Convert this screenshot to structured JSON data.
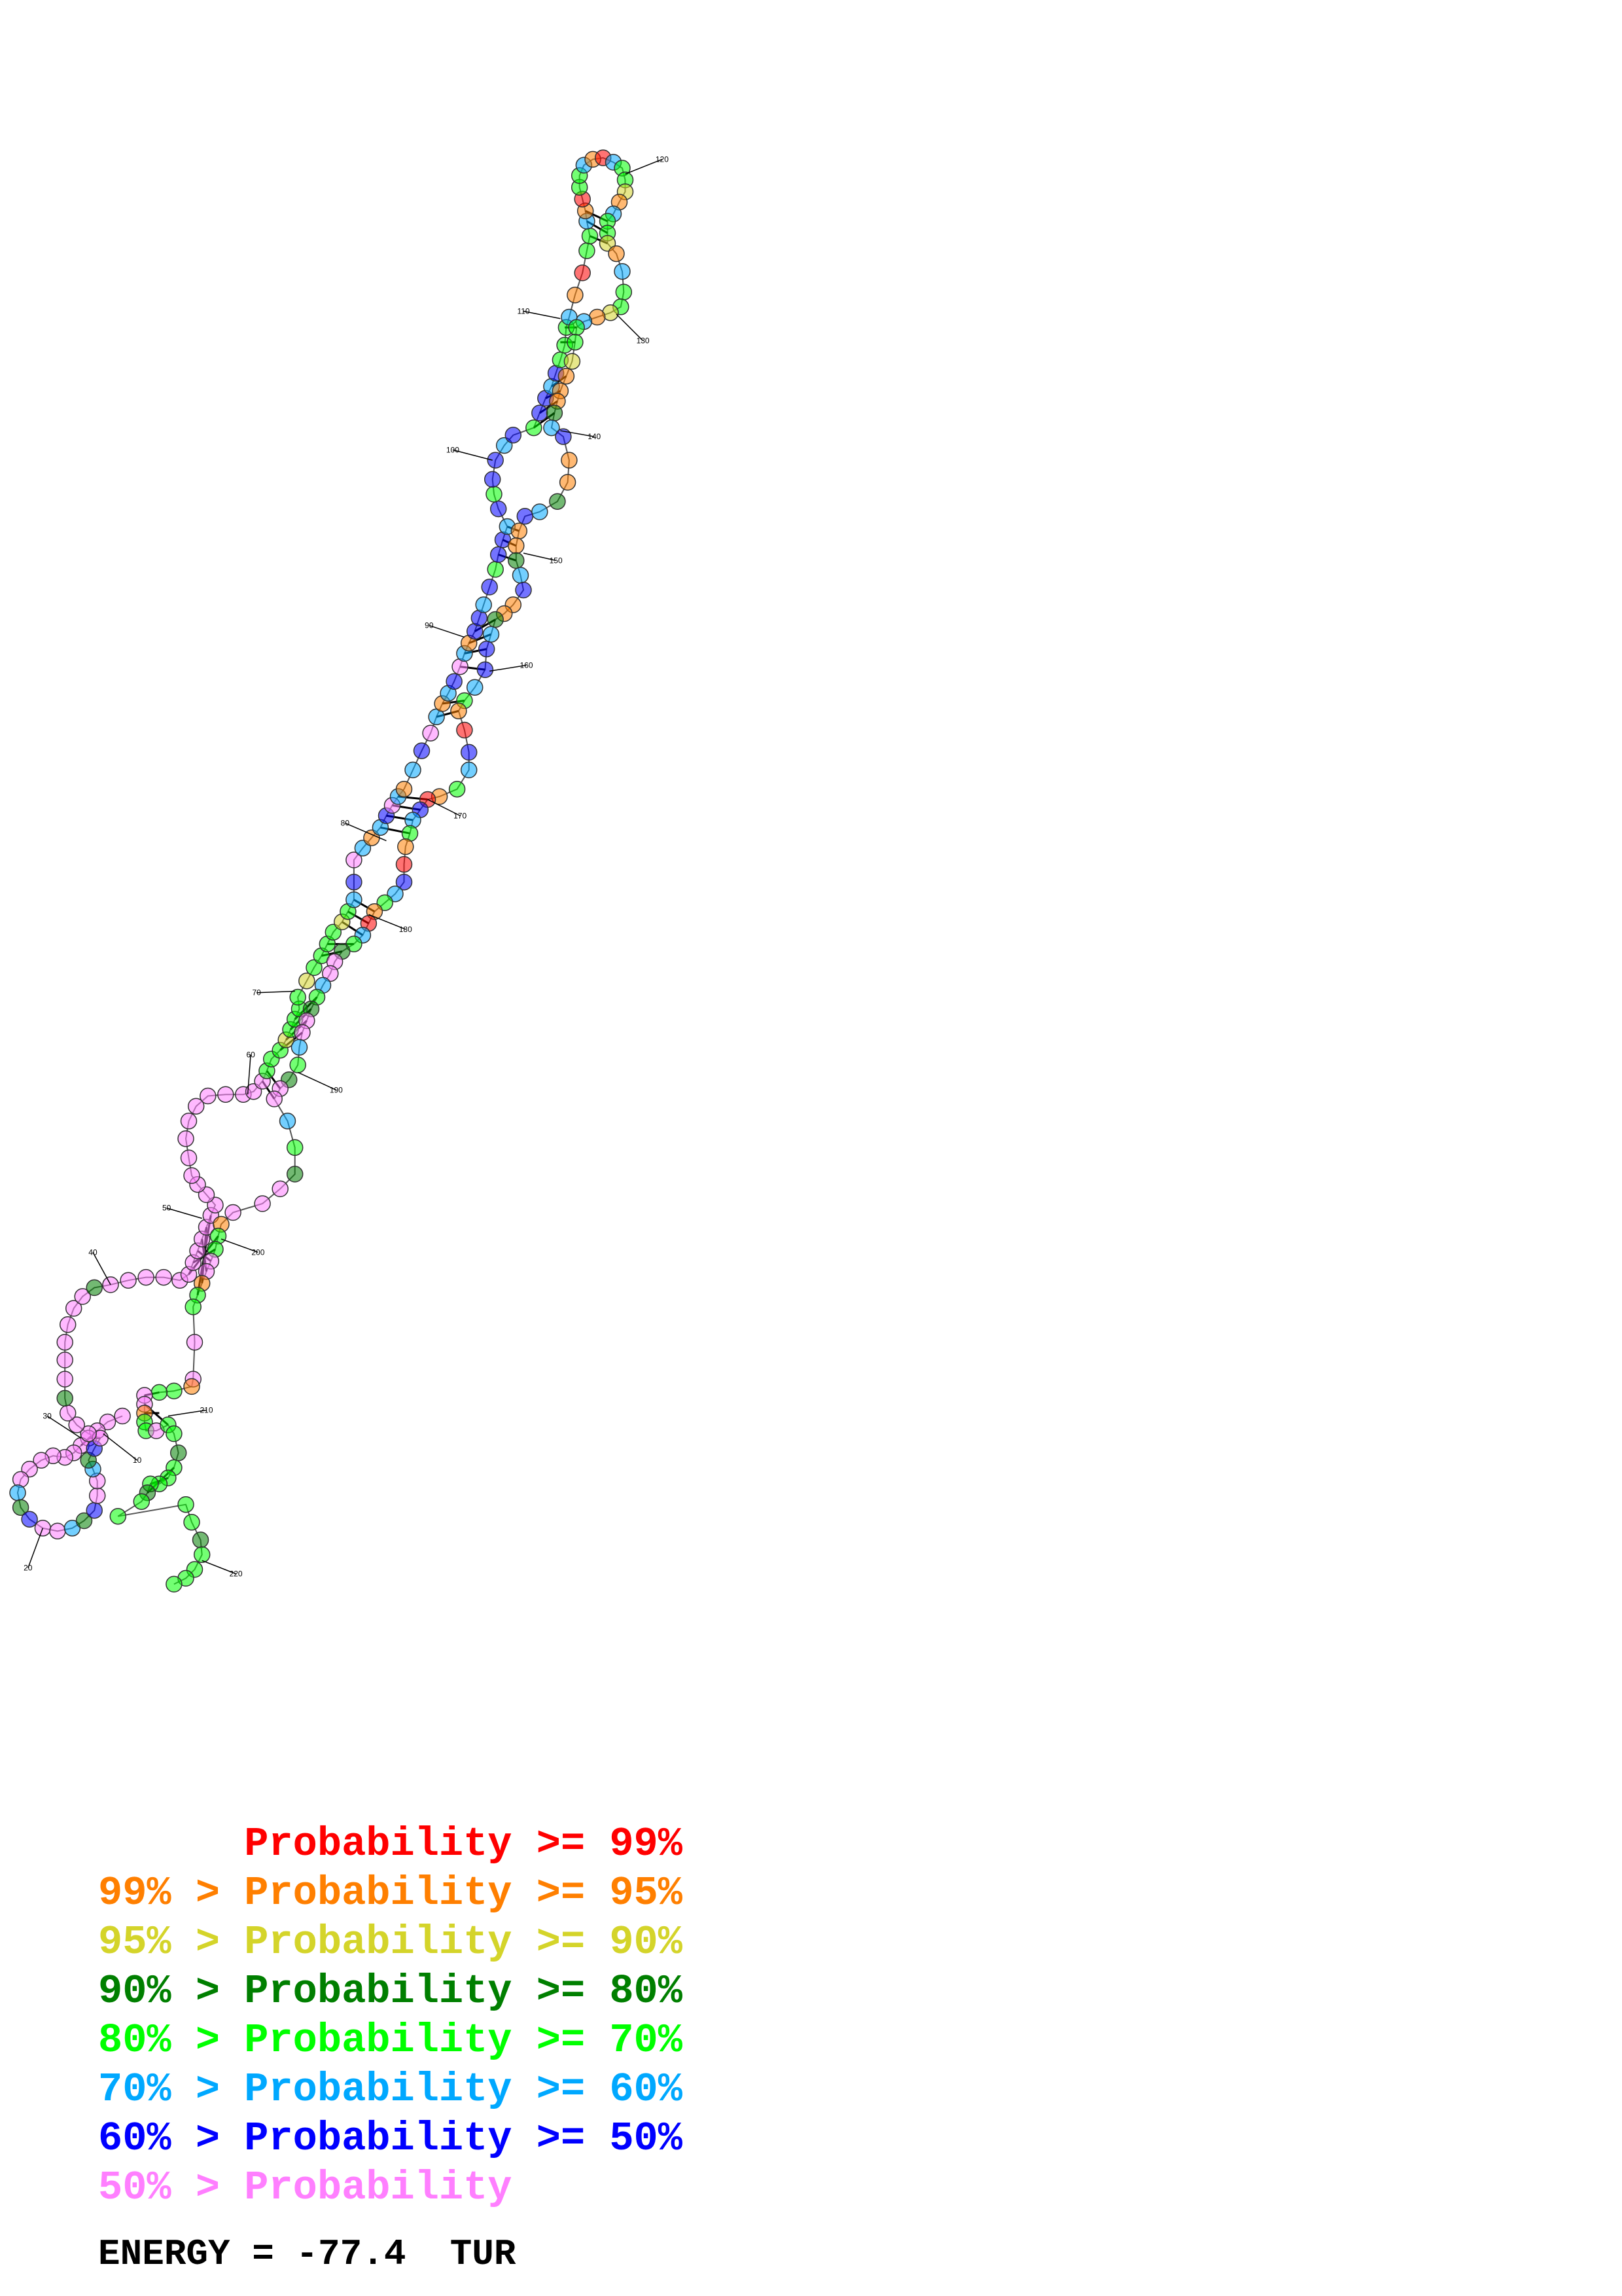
{
  "structure": {
    "type": "RNA secondary structure (nucleotide graph)",
    "tick_labels": [
      "10",
      "20",
      "30",
      "40",
      "50",
      "60",
      "70",
      "80",
      "90",
      "100",
      "110",
      "120",
      "130",
      "140",
      "150",
      "160",
      "170",
      "180",
      "190",
      "200",
      "210",
      "220"
    ],
    "probability_colors": {
      "p99": "#ff0000",
      "p95": "#ff7f00",
      "p90": "#d4d42a",
      "p80": "#007f00",
      "p70": "#00ff00",
      "p60": "#00a8ff",
      "p50": "#0000ff",
      "plow": "#ff7fff"
    }
  },
  "legend": {
    "rows": [
      {
        "prefix": "",
        "label": "Probability",
        "suffix": " >= 99%",
        "color": "#ff0000"
      },
      {
        "prefix": "99% > ",
        "label": "Probability",
        "suffix": " >= 95%",
        "color": "#ff7f00"
      },
      {
        "prefix": "95% > ",
        "label": "Probability",
        "suffix": " >= 90%",
        "color": "#d4d42a"
      },
      {
        "prefix": "90% > ",
        "label": "Probability",
        "suffix": " >= 80%",
        "color": "#007f00"
      },
      {
        "prefix": "80% > ",
        "label": "Probability",
        "suffix": " >= 70%",
        "color": "#00ff00"
      },
      {
        "prefix": "70% > ",
        "label": "Probability",
        "suffix": " >= 60%",
        "color": "#00a8ff"
      },
      {
        "prefix": "60% > ",
        "label": "Probability",
        "suffix": " >= 50%",
        "color": "#0000ff"
      },
      {
        "prefix": "50% > ",
        "label": "Probability",
        "suffix": "",
        "color": "#ff7fff"
      }
    ]
  },
  "energy": {
    "text": "ENERGY = -77.4  TUR"
  }
}
